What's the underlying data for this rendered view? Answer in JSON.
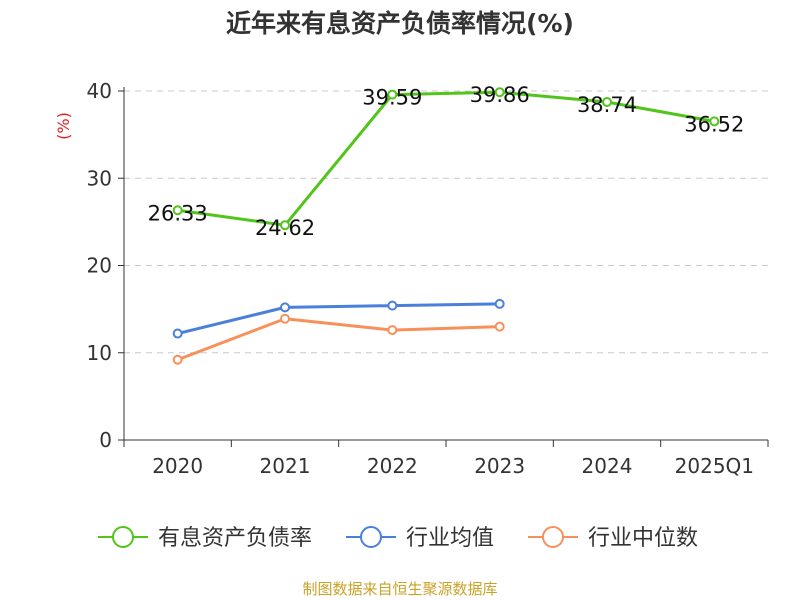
{
  "chart_data": {
    "type": "line",
    "title": "近年来有息资产负债率情况(%)",
    "ylabel": "(%)",
    "xlabel": "",
    "categories": [
      "2020",
      "2021",
      "2022",
      "2023",
      "2024",
      "2025Q1"
    ],
    "ylim": [
      0,
      40
    ],
    "yticks": [
      0,
      10,
      20,
      30,
      40
    ],
    "grid": true,
    "legend_position": "bottom",
    "series": [
      {
        "name": "有息资产负债率",
        "color": "#52c41a",
        "values": [
          26.33,
          24.62,
          39.59,
          39.86,
          38.74,
          36.52
        ],
        "labels": [
          "26.33",
          "24.62",
          "39.59",
          "39.86",
          "38.74",
          "36.52"
        ]
      },
      {
        "name": "行业均值",
        "color": "#4a7fdc",
        "values": [
          12.2,
          15.2,
          15.4,
          15.6,
          null,
          null
        ]
      },
      {
        "name": "行业中位数",
        "color": "#f7905a",
        "values": [
          9.2,
          13.9,
          12.6,
          13.0,
          null,
          null
        ]
      }
    ]
  },
  "source_text": "制图数据来自恒生聚源数据库"
}
